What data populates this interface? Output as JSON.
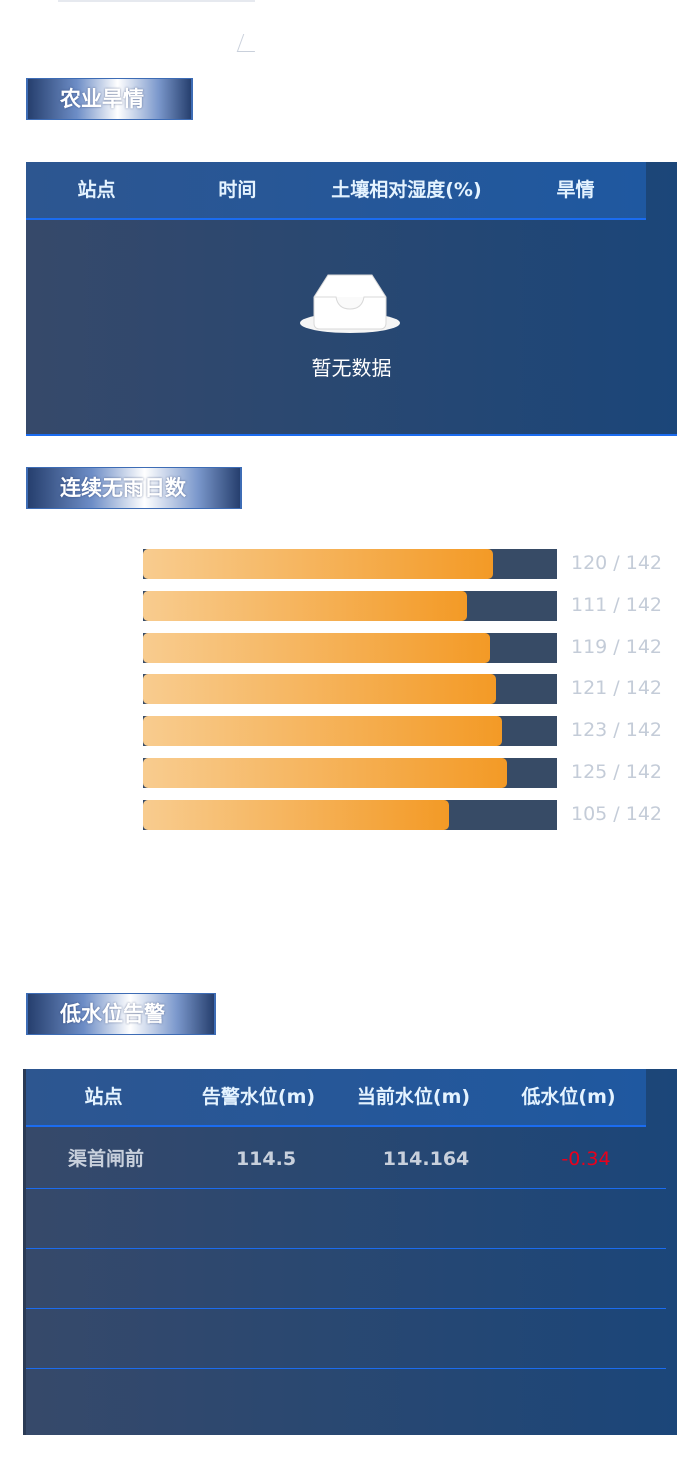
{
  "drought": {
    "title": "农业旱情",
    "columns": [
      "站点",
      "时间",
      "土壤相对湿度(%)",
      "旱情"
    ],
    "empty_text": "暂无数据"
  },
  "norain": {
    "title": "连续无雨日数",
    "max": 142,
    "items": [
      {
        "value": 120,
        "label": "120 / 142"
      },
      {
        "value": 111,
        "label": "111 / 142"
      },
      {
        "value": 119,
        "label": "119 / 142"
      },
      {
        "value": 121,
        "label": "121 / 142"
      },
      {
        "value": 123,
        "label": "123 / 142"
      },
      {
        "value": 125,
        "label": "125 / 142"
      },
      {
        "value": 105,
        "label": "105 / 142"
      }
    ],
    "colors": {
      "fill_start": "#f8cc8f",
      "fill_end": "#f39a26",
      "track": "#374b66"
    }
  },
  "lowwater": {
    "title": "低水位告警",
    "columns": [
      "站点",
      "告警水位(m)",
      "当前水位(m)",
      "低水位(m)"
    ],
    "rows": [
      {
        "station": "渠首闸前",
        "alarm": "114.5",
        "current": "114.164",
        "low": "-0.34"
      }
    ],
    "colors": {
      "negative": "#e8001c"
    }
  }
}
